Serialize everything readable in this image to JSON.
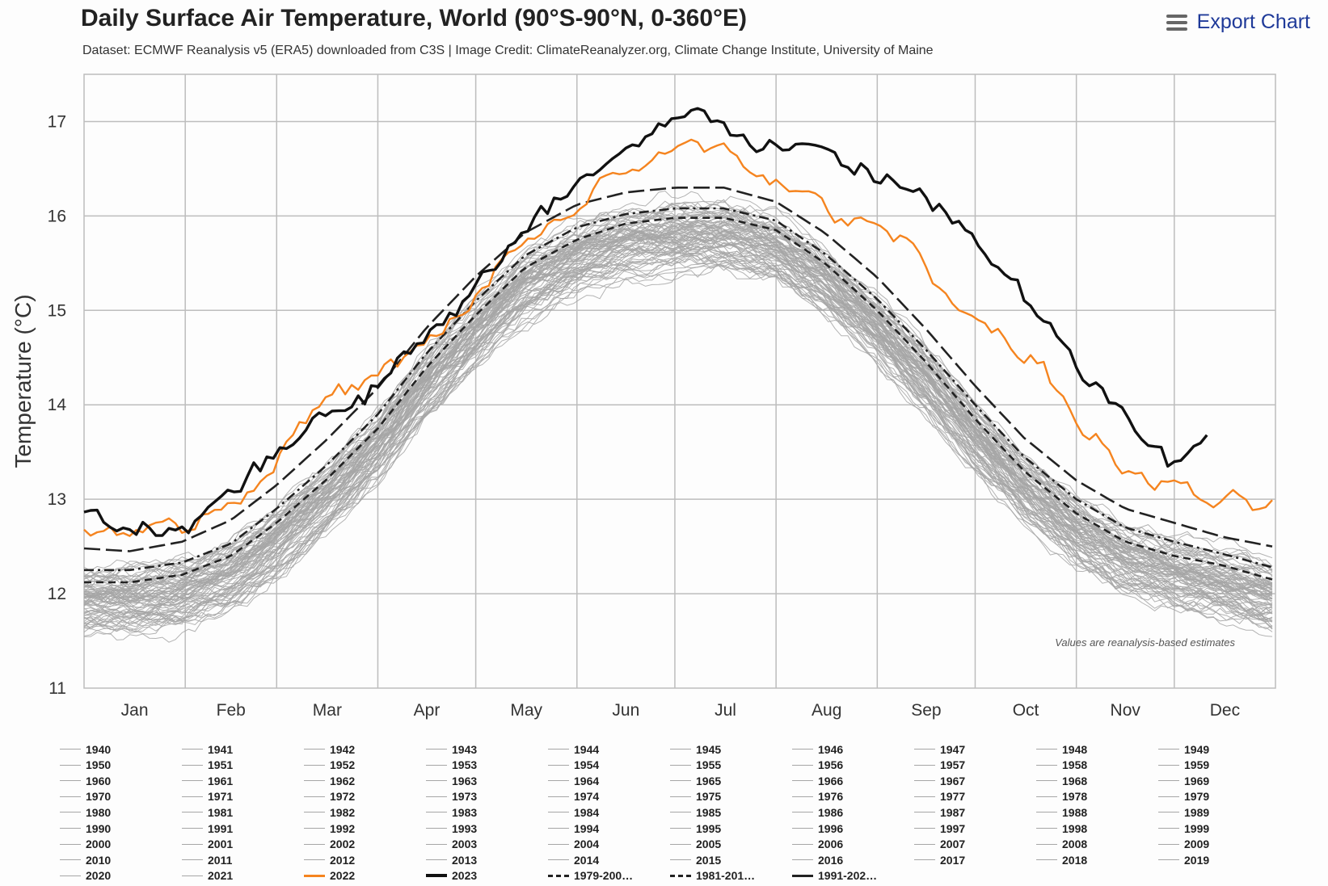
{
  "header": {
    "title": "Daily Surface Air Temperature, World (90°S-90°N, 0-360°E)",
    "subtitle": "Dataset: ECMWF Reanalysis v5 (ERA5) downloaded from C3S | Image Credit: ClimateReanalyzer.org, Climate Change Institute, University of Maine",
    "export_label": "Export Chart",
    "export_icon": "hamburger-menu-icon"
  },
  "chart_data": {
    "type": "line",
    "xlabel": "",
    "ylabel": "Temperature (°C)",
    "ylim": [
      11,
      17.5
    ],
    "yticks": [
      11,
      12,
      13,
      14,
      15,
      16,
      17
    ],
    "xlim": [
      1,
      366
    ],
    "month_labels": [
      "Jan",
      "Feb",
      "Mar",
      "Apr",
      "May",
      "Jun",
      "Jul",
      "Aug",
      "Sep",
      "Oct",
      "Nov",
      "Dec"
    ],
    "grid": true,
    "annotation": "Values are reanalysis-based estimates",
    "colors": {
      "history": "#a6a6a6",
      "y2022": "#f5841f",
      "y2023": "#111111",
      "mean": "#222222"
    },
    "history_years": [
      1940,
      1941,
      1942,
      1943,
      1944,
      1945,
      1946,
      1947,
      1948,
      1949,
      1950,
      1951,
      1952,
      1953,
      1954,
      1955,
      1956,
      1957,
      1958,
      1959,
      1960,
      1961,
      1962,
      1963,
      1964,
      1965,
      1966,
      1967,
      1968,
      1969,
      1970,
      1971,
      1972,
      1973,
      1974,
      1975,
      1976,
      1977,
      1978,
      1979,
      1980,
      1981,
      1982,
      1983,
      1984,
      1985,
      1986,
      1987,
      1988,
      1989,
      1990,
      1991,
      1992,
      1993,
      1994,
      1995,
      1996,
      1997,
      1998,
      1999,
      2000,
      2001,
      2002,
      2003,
      2004,
      2005,
      2006,
      2007,
      2008,
      2009,
      2010,
      2011,
      2012,
      2013,
      2014,
      2015,
      2016,
      2017,
      2018,
      2019,
      2020,
      2021
    ],
    "series": [
      {
        "name": "2022",
        "style": "orange",
        "x": [
          1,
          15,
          31,
          46,
          60,
          75,
          91,
          106,
          121,
          136,
          152,
          167,
          182,
          197,
          213,
          228,
          244,
          259,
          274,
          289,
          305,
          320,
          335,
          350,
          365
        ],
        "y": [
          12.7,
          12.75,
          12.75,
          12.95,
          13.5,
          14.0,
          14.3,
          14.6,
          15.1,
          15.75,
          16.1,
          16.5,
          16.65,
          16.7,
          16.4,
          16.05,
          15.9,
          15.5,
          14.9,
          14.6,
          13.9,
          13.3,
          13.1,
          12.9,
          12.95
        ]
      },
      {
        "name": "2023",
        "style": "black",
        "x": [
          1,
          15,
          31,
          46,
          60,
          75,
          91,
          106,
          121,
          136,
          152,
          167,
          182,
          197,
          213,
          228,
          244,
          259,
          274,
          289,
          305,
          320,
          335,
          345
        ],
        "y": [
          12.95,
          12.6,
          12.7,
          13.1,
          13.55,
          13.95,
          14.2,
          14.8,
          15.25,
          15.75,
          16.35,
          16.7,
          17.0,
          17.0,
          16.75,
          16.6,
          16.4,
          16.25,
          15.7,
          15.1,
          14.4,
          13.85,
          13.3,
          13.6
        ]
      },
      {
        "name": "1979-200…",
        "style": "dash",
        "x": [
          1,
          15,
          31,
          46,
          60,
          75,
          91,
          106,
          121,
          136,
          152,
          167,
          182,
          197,
          213,
          228,
          244,
          259,
          274,
          289,
          305,
          320,
          335,
          350,
          365
        ],
        "y": [
          12.12,
          12.12,
          12.2,
          12.4,
          12.75,
          13.2,
          13.75,
          14.4,
          14.95,
          15.45,
          15.75,
          15.92,
          15.98,
          15.98,
          15.85,
          15.5,
          15.0,
          14.45,
          13.85,
          13.3,
          12.85,
          12.55,
          12.4,
          12.3,
          12.15
        ]
      },
      {
        "name": "1981-201…",
        "style": "dashdot",
        "x": [
          1,
          15,
          31,
          46,
          60,
          75,
          91,
          106,
          121,
          136,
          152,
          167,
          182,
          197,
          213,
          228,
          244,
          259,
          274,
          289,
          305,
          320,
          335,
          350,
          365
        ],
        "y": [
          12.25,
          12.25,
          12.33,
          12.53,
          12.9,
          13.35,
          13.9,
          14.55,
          15.1,
          15.58,
          15.88,
          16.02,
          16.08,
          16.08,
          15.95,
          15.6,
          15.12,
          14.58,
          14.0,
          13.45,
          13.0,
          12.7,
          12.55,
          12.42,
          12.28
        ]
      },
      {
        "name": "1991-202…",
        "style": "longdash",
        "x": [
          1,
          15,
          31,
          46,
          60,
          75,
          91,
          106,
          121,
          136,
          152,
          167,
          182,
          197,
          213,
          228,
          244,
          259,
          274,
          289,
          305,
          320,
          335,
          350,
          365
        ],
        "y": [
          12.48,
          12.45,
          12.55,
          12.78,
          13.15,
          13.62,
          14.18,
          14.82,
          15.36,
          15.82,
          16.12,
          16.25,
          16.3,
          16.3,
          16.15,
          15.82,
          15.35,
          14.8,
          14.2,
          13.65,
          13.2,
          12.9,
          12.75,
          12.6,
          12.5
        ]
      }
    ]
  },
  "legend": {
    "year_items": [
      "1940",
      "1941",
      "1942",
      "1943",
      "1944",
      "1945",
      "1946",
      "1947",
      "1948",
      "1949",
      "1950",
      "1951",
      "1952",
      "1953",
      "1954",
      "1955",
      "1956",
      "1957",
      "1958",
      "1959",
      "1960",
      "1961",
      "1962",
      "1963",
      "1964",
      "1965",
      "1966",
      "1967",
      "1968",
      "1969",
      "1970",
      "1971",
      "1972",
      "1973",
      "1974",
      "1975",
      "1976",
      "1977",
      "1978",
      "1979",
      "1980",
      "1981",
      "1982",
      "1983",
      "1984",
      "1985",
      "1986",
      "1987",
      "1988",
      "1989",
      "1990",
      "1991",
      "1992",
      "1993",
      "1994",
      "1995",
      "1996",
      "1997",
      "1998",
      "1999",
      "2000",
      "2001",
      "2002",
      "2003",
      "2004",
      "2005",
      "2006",
      "2007",
      "2008",
      "2009",
      "2010",
      "2011",
      "2012",
      "2013",
      "2014",
      "2015",
      "2016",
      "2017",
      "2018",
      "2019",
      "2020",
      "2021",
      "2022",
      "2023"
    ],
    "special_items": [
      "1979-200…",
      "1981-201…",
      "1991-202…"
    ]
  }
}
